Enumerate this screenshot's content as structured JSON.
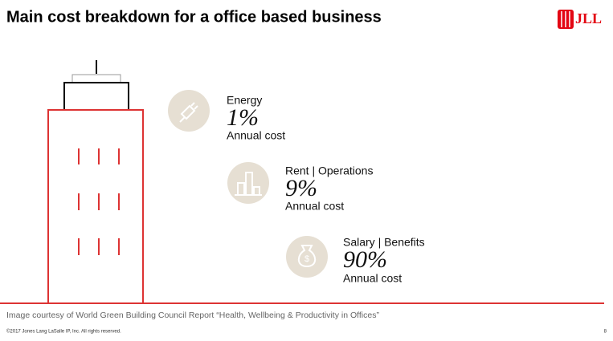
{
  "header": {
    "title": "Main cost breakdown for a office based business",
    "logo": "JLL"
  },
  "items": [
    {
      "label": "Energy",
      "value": "1%",
      "caption": "Annual cost"
    },
    {
      "label": "Rent | Operations",
      "value": "9%",
      "caption": "Annual cost"
    },
    {
      "label": "Salary | Benefits",
      "value": "90%",
      "caption": "Annual cost"
    }
  ],
  "footer": {
    "source": "Image courtesy of World Green Building Council Report “Health, Wellbeing & Productivity in Offices”",
    "copyright": "©2017 Jones Lang LaSalle IP, Inc. All rights reserved.",
    "page": "8"
  }
}
